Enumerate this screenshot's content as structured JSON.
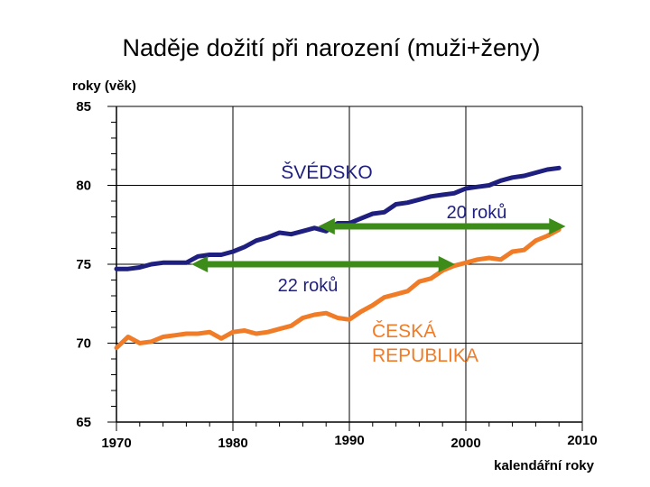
{
  "chart_data": {
    "type": "line",
    "title": "Naděje dožití při narození (muži+ženy)",
    "ylabel": "roky (věk)",
    "xlabel": "kalendářní roky",
    "xlim": [
      1970,
      2010
    ],
    "ylim": [
      65,
      85
    ],
    "x_ticks": [
      1970,
      1980,
      1990,
      2000,
      2010
    ],
    "y_ticks": [
      65,
      70,
      75,
      80,
      85
    ],
    "grid": true,
    "series": [
      {
        "name": "ŠVÉDSKO",
        "color": "#1f1f80",
        "x": [
          1970,
          1971,
          1972,
          1973,
          1974,
          1975,
          1976,
          1977,
          1978,
          1979,
          1980,
          1981,
          1982,
          1983,
          1984,
          1985,
          1986,
          1987,
          1988,
          1989,
          1990,
          1991,
          1992,
          1993,
          1994,
          1995,
          1996,
          1997,
          1998,
          1999,
          2000,
          2001,
          2002,
          2003,
          2004,
          2005,
          2006,
          2007,
          2008
        ],
        "values": [
          74.7,
          74.7,
          74.8,
          75.0,
          75.1,
          75.1,
          75.1,
          75.5,
          75.6,
          75.6,
          75.8,
          76.1,
          76.5,
          76.7,
          77.0,
          76.9,
          77.1,
          77.3,
          77.1,
          77.6,
          77.6,
          77.9,
          78.2,
          78.3,
          78.8,
          78.9,
          79.1,
          79.3,
          79.4,
          79.5,
          79.8,
          79.9,
          80.0,
          80.3,
          80.5,
          80.6,
          80.8,
          81.0,
          81.1
        ]
      },
      {
        "name": "ČESKÁ REPUBLIKA",
        "color": "#f07c28",
        "x": [
          1970,
          1971,
          1972,
          1973,
          1974,
          1975,
          1976,
          1977,
          1978,
          1979,
          1980,
          1981,
          1982,
          1983,
          1984,
          1985,
          1986,
          1987,
          1988,
          1989,
          1990,
          1991,
          1992,
          1993,
          1994,
          1995,
          1996,
          1997,
          1998,
          1999,
          2000,
          2001,
          2002,
          2003,
          2004,
          2005,
          2006,
          2007,
          2008
        ],
        "values": [
          69.7,
          70.4,
          70.0,
          70.1,
          70.4,
          70.5,
          70.6,
          70.6,
          70.7,
          70.3,
          70.7,
          70.8,
          70.6,
          70.7,
          70.9,
          71.1,
          71.6,
          71.8,
          71.9,
          71.6,
          71.5,
          72.0,
          72.4,
          72.9,
          73.1,
          73.3,
          73.9,
          74.1,
          74.6,
          74.9,
          75.1,
          75.3,
          75.4,
          75.3,
          75.8,
          75.9,
          76.5,
          76.8,
          77.2
        ]
      }
    ],
    "annotations": [
      {
        "text": "ŠVÉDSKO",
        "color": "#1f1f80"
      },
      {
        "text": "20 roků",
        "color": "#1f1f80",
        "arrow": {
          "from": [
            1987.9,
            77.4
          ],
          "to": [
            2008,
            77.4
          ],
          "color": "#3d8c1a"
        }
      },
      {
        "text": "22 roků",
        "color": "#1f1f80",
        "arrow": {
          "from": [
            1977,
            75.0
          ],
          "to": [
            1998.5,
            75.0
          ],
          "color": "#3d8c1a"
        }
      },
      {
        "text": "ČESKÁ",
        "color": "#f07c28"
      },
      {
        "text": "REPUBLIKA",
        "color": "#f07c28"
      }
    ]
  }
}
